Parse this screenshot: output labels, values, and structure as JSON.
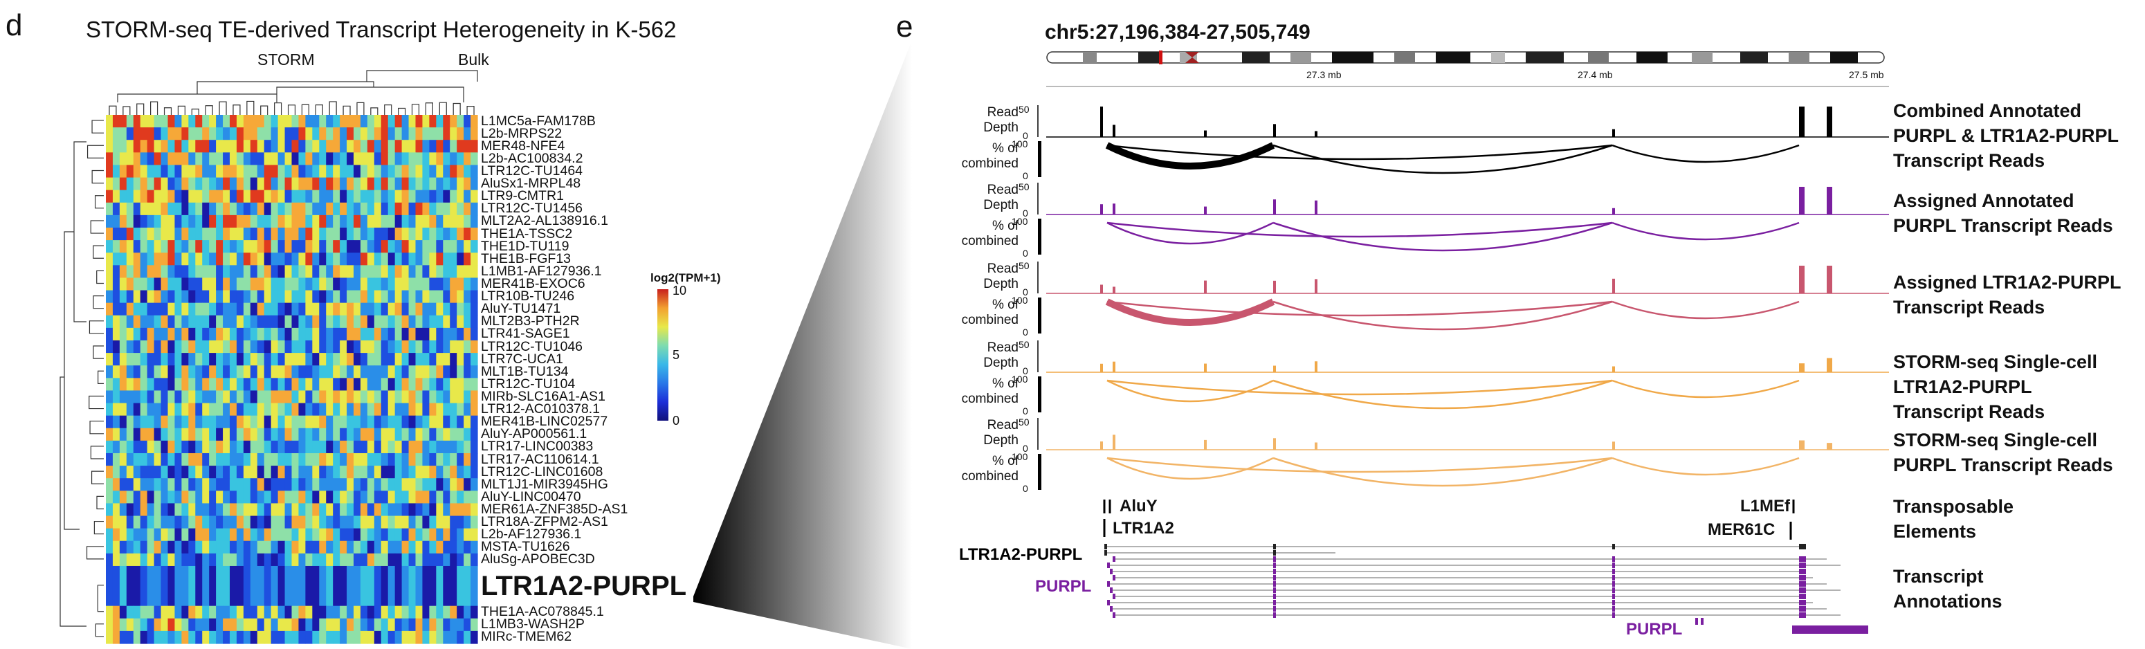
{
  "panel_d": {
    "letter": "d",
    "title": "STORM-seq TE-derived Transcript Heterogeneity in K-562",
    "col_groups": [
      "STORM",
      "Bulk"
    ],
    "legend_title": "log2(TPM+1)",
    "legend_ticks": [
      "10",
      "5",
      "0"
    ],
    "colors": [
      "#1a1aa8",
      "#1e4fe0",
      "#2a8ee8",
      "#39c4e0",
      "#8ee0a8",
      "#e8e84a",
      "#f6a838",
      "#e03a1e"
    ]
  },
  "panel_e": {
    "letter": "e",
    "locus": "chr5:27,196,384-27,505,749",
    "axis_ticks": [
      "27.3 mb",
      "27.4 mb",
      "27.5 mb"
    ],
    "track_labels": {
      "read_depth": "Read\nDepth",
      "pct": "% of\ncombined"
    },
    "track_ticks": {
      "depth": [
        "50",
        "0"
      ],
      "pct": [
        "100",
        "0"
      ]
    },
    "right_labels": [
      "Combined Annotated\nPURPL & LTR1A2-PURPL\nTranscript Reads",
      "Assigned Annotated\nPURPL Transcript Reads",
      "Assigned LTR1A2-PURPL\nTranscript Reads",
      "STORM-seq Single-cell\nLTR1A2-PURPL\nTranscript Reads",
      "STORM-seq Single-cell\nPURPL Transcript Reads",
      "Transposable\nElements",
      "Transcript\nAnnotations"
    ],
    "te_labels": [
      "AluY",
      "LTR1A2",
      "L1MEf",
      "MER61C"
    ],
    "tx_labels": [
      "LTR1A2-PURPL",
      "PURPL",
      "PURPL"
    ],
    "track_colors": [
      "#000000",
      "#7a1fa0",
      "#c8566e",
      "#f0a848",
      "#f2b466"
    ]
  },
  "chart_data": {
    "type": "heatmap",
    "title": "STORM-seq TE-derived Transcript Heterogeneity in K-562",
    "legend_title": "log2(TPM+1)",
    "color_range": [
      0,
      10
    ],
    "column_groups": [
      "STORM",
      "Bulk"
    ],
    "rows": [
      "L1MC5a-FAM178B",
      "L2b-MRPS22",
      "MER48-NFE4",
      "L2b-AC100834.2",
      "LTR12C-TU1464",
      "AluSx1-MRPL48",
      "LTR9-CMTR1",
      "LTR12C-TU1456",
      "MLT2A2-AL138916.1",
      "THE1A-TSSC2",
      "THE1D-TU119",
      "THE1B-FGF13",
      "L1MB1-AF127936.1",
      "MER41B-EXOC6",
      "LTR10B-TU246",
      "AluY-TU1471",
      "MLT2B3-PTH2R",
      "LTR41-SAGE1",
      "LTR12C-TU1046",
      "LTR7C-UCA1",
      "MLT1B-TU134",
      "LTR12C-TU104",
      "MIRb-SLC16A1-AS1",
      "LTR12-AC010378.1",
      "MER41B-LINC02577",
      "AluY-AP000561.1",
      "LTR17-LINC00383",
      "LTR17-AC110614.1",
      "LTR12C-LINC01608",
      "MLT1J1-MIR3945HG",
      "AluY-LINC00470",
      "MER61A-ZNF385D-AS1",
      "LTR18A-ZFPM2-AS1",
      "L2b-AF127936.1",
      "MSTA-TU1626",
      "AluSg-APOBEC3D",
      "LTR1A2-PURPL",
      "THE1A-AC078845.1",
      "L1MB3-WASH2P",
      "MIRc-TMEM62"
    ],
    "highlighted_row": "LTR1A2-PURPL"
  }
}
